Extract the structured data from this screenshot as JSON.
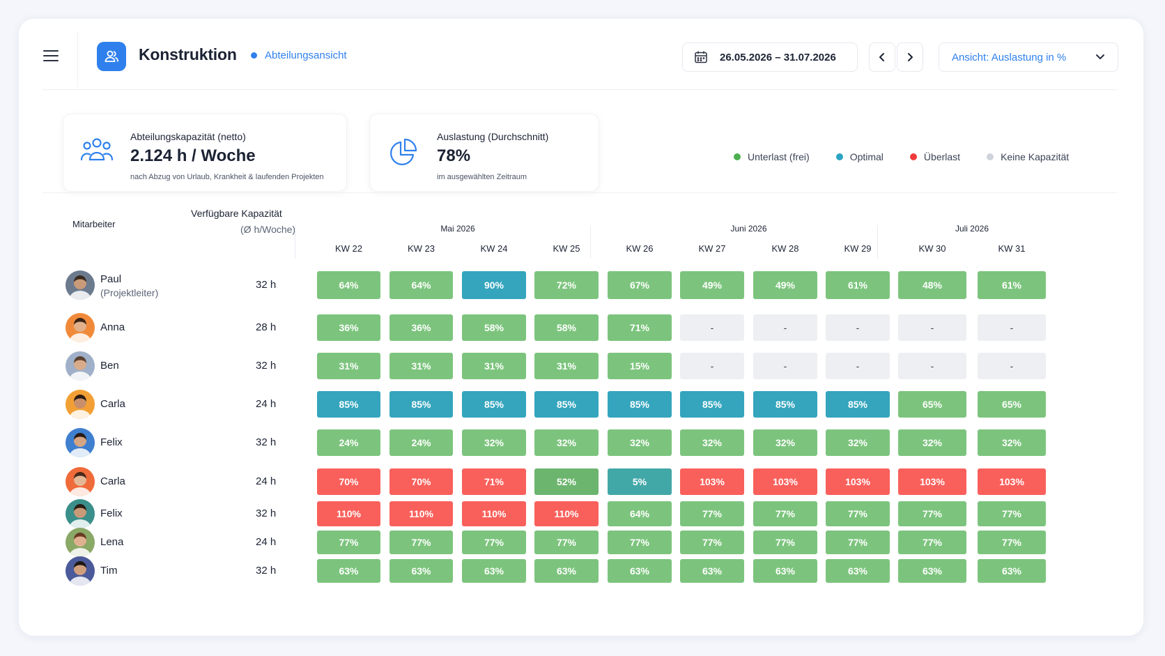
{
  "header": {
    "app_title": "Konstruktion",
    "view_label": "Abteilungsansicht",
    "date_range": "26.05.2026 – 31.07.2026",
    "view_select": "Ansicht: Auslastung in %"
  },
  "kpis": [
    {
      "label": "Abteilungskapazität (netto)",
      "value": "2.124 h / Woche",
      "sub": "nach Abzug von Urlaub, Krankheit & laufenden Projekten"
    },
    {
      "label": "Auslastung (Durchschnitt)",
      "value": "78%",
      "sub": "im ausgewählten Zeitraum"
    }
  ],
  "legend": [
    {
      "label": "Unterlast (frei)",
      "color": "#4caf50"
    },
    {
      "label": "Optimal",
      "color": "#2aa3c4"
    },
    {
      "label": "Überlast",
      "color": "#f03a3a"
    },
    {
      "label": "Keine Kapazität",
      "color": "#cfd3da"
    }
  ],
  "table": {
    "col_employee": "Mitarbeiter",
    "col_capacity_1": "Verfügbare Kapazität",
    "col_capacity_2": "(Ø h/Woche)",
    "months": [
      "Mai 2026",
      "Juni 2026",
      "Juli 2026"
    ],
    "weeks": [
      "KW 22",
      "KW 23",
      "KW 24",
      "KW 25",
      "KW 26",
      "KW 27",
      "KW 28",
      "KW 29",
      "KW 30",
      "KW 31"
    ],
    "rows": [
      {
        "name": "Paul",
        "role": "(Projektleiter)",
        "capacity": "32 h",
        "cells": [
          "64%",
          "64%",
          "90%",
          "72%",
          "67%",
          "49%",
          "49%",
          "61%",
          "48%",
          "61%"
        ],
        "status": [
          "green",
          "green",
          "blue",
          "green",
          "green",
          "green",
          "green",
          "green",
          "green",
          "green"
        ]
      },
      {
        "name": "Anna",
        "role": "",
        "capacity": "28 h",
        "cells": [
          "36%",
          "36%",
          "58%",
          "58%",
          "71%",
          "-",
          "-",
          "-",
          "-",
          "-"
        ],
        "status": [
          "green",
          "green",
          "green",
          "green",
          "green",
          "empty",
          "empty",
          "empty",
          "empty",
          "empty"
        ]
      },
      {
        "name": "Ben",
        "role": "",
        "capacity": "32 h",
        "cells": [
          "31%",
          "31%",
          "31%",
          "31%",
          "15%",
          "-",
          "-",
          "-",
          "-",
          "-"
        ],
        "status": [
          "green",
          "green",
          "green",
          "green",
          "green",
          "empty",
          "empty",
          "empty",
          "empty",
          "empty"
        ]
      },
      {
        "name": "Carla",
        "role": "",
        "capacity": "24 h",
        "cells": [
          "85%",
          "85%",
          "85%",
          "85%",
          "85%",
          "85%",
          "85%",
          "85%",
          "65%",
          "65%"
        ],
        "status": [
          "blue",
          "blue",
          "blue",
          "blue",
          "blue",
          "blue",
          "blue",
          "blue",
          "green",
          "green"
        ]
      },
      {
        "name": "Felix",
        "role": "",
        "capacity": "32 h",
        "cells": [
          "24%",
          "24%",
          "32%",
          "32%",
          "32%",
          "32%",
          "32%",
          "32%",
          "32%",
          "32%"
        ],
        "status": [
          "green",
          "green",
          "green",
          "green",
          "green",
          "green",
          "green",
          "green",
          "green",
          "green"
        ]
      },
      {
        "name": "Carla",
        "role": "",
        "capacity": "24 h",
        "cells": [
          "70%",
          "70%",
          "71%",
          "52%",
          "5%",
          "103%",
          "103%",
          "103%",
          "103%",
          "103%"
        ],
        "status": [
          "red",
          "red",
          "red",
          "green2",
          "teal",
          "red",
          "red",
          "red",
          "red",
          "red"
        ]
      },
      {
        "name": "Felix",
        "role": "",
        "capacity": "32 h",
        "cells": [
          "110%",
          "110%",
          "110%",
          "110%",
          "64%",
          "77%",
          "77%",
          "77%",
          "77%",
          "77%"
        ],
        "status": [
          "red",
          "red",
          "red",
          "red",
          "green",
          "green",
          "green",
          "green",
          "green",
          "green"
        ]
      },
      {
        "name": "Lena",
        "role": "",
        "capacity": "24 h",
        "cells": [
          "77%",
          "77%",
          "77%",
          "77%",
          "77%",
          "77%",
          "77%",
          "77%",
          "77%",
          "77%"
        ],
        "status": [
          "green",
          "green",
          "green",
          "green",
          "green",
          "green",
          "green",
          "green",
          "green",
          "green"
        ]
      },
      {
        "name": "Tim",
        "role": "",
        "capacity": "32 h",
        "cells": [
          "63%",
          "63%",
          "63%",
          "63%",
          "63%",
          "63%",
          "63%",
          "63%",
          "63%",
          "63%"
        ],
        "status": [
          "green",
          "green",
          "green",
          "green",
          "green",
          "green",
          "green",
          "green",
          "green",
          "green"
        ]
      }
    ]
  }
}
